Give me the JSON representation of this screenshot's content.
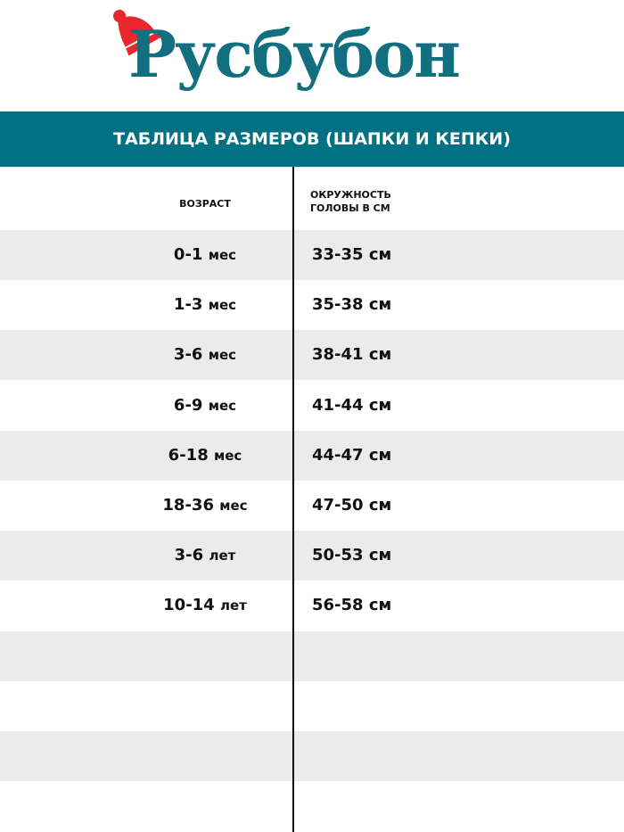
{
  "logo": {
    "text": "Русбубон",
    "colors": {
      "text": "#126f80",
      "hat": "#e8262b"
    }
  },
  "banner": {
    "title": "ТАБЛИЦА РАЗМЕРОВ (ШАПКИ И КЕПКИ)",
    "color": "#027184"
  },
  "table": {
    "headers": {
      "age": "ВОЗРАСТ",
      "head_circumference_line1": "ОКРУЖНОСТЬ",
      "head_circumference_line2": "ГОЛОВЫ В СМ"
    },
    "rows": [
      {
        "age_num": "0-1",
        "age_unit": "мес",
        "size": "33-35 см"
      },
      {
        "age_num": "1-3",
        "age_unit": "мес",
        "size": "35-38 см"
      },
      {
        "age_num": "3-6",
        "age_unit": "мес",
        "size": "38-41 см"
      },
      {
        "age_num": "6-9",
        "age_unit": "мес",
        "size": "41-44 см"
      },
      {
        "age_num": "6-18",
        "age_unit": "мес",
        "size": "44-47 см"
      },
      {
        "age_num": "18-36",
        "age_unit": "мес",
        "size": "47-50 см"
      },
      {
        "age_num": "3-6",
        "age_unit": "лет",
        "size": "50-53 см"
      },
      {
        "age_num": "10-14",
        "age_unit": "лет",
        "size": "56-58 см"
      }
    ]
  }
}
